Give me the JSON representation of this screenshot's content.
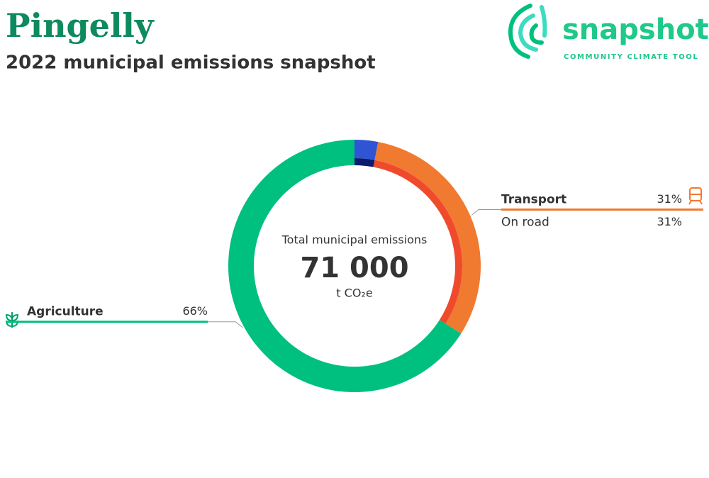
{
  "chart_data": {
    "type": "donut",
    "title": "Pingelly",
    "subtitle": "2022 municipal emissions snapshot",
    "logo_name": "snapshot",
    "logo_tagline": "COMMUNITY CLIMATE TOOL",
    "center_title": "Total municipal emissions",
    "total": "71 000",
    "unit": "t CO₂e",
    "categories": [
      null,
      "Transport",
      "Agriculture"
    ],
    "values": [
      3,
      31,
      66
    ],
    "value_labels": [
      null,
      "31%",
      "66%"
    ],
    "colors": [
      "#2f55d4",
      "#f07a30",
      "#00c07f"
    ],
    "sub_categories": [
      null,
      "On road",
      null
    ],
    "sub_values": [
      3,
      31,
      null
    ],
    "sub_value_labels": [
      null,
      "31%",
      null
    ],
    "sub_colors": [
      "#0a1a6e",
      "#f04a2c",
      null
    ]
  }
}
